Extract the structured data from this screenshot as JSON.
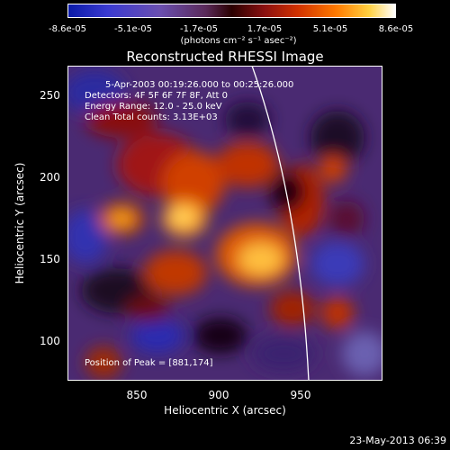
{
  "colorbar": {
    "ticks": [
      "-8.6e-05",
      "-5.1e-05",
      "-1.7e-05",
      "1.7e-05",
      "5.1e-05",
      "8.6e-05"
    ],
    "unit_label": "(photons cm⁻² s⁻¹ asec⁻²)"
  },
  "plot": {
    "title": "Reconstructed RHESSI Image",
    "annotations": {
      "time": "5-Apr-2003 00:19:26.000 to 00:25:26.000",
      "detectors": "Detectors: 4F 5F 6F 7F 8F, Att 0",
      "energy": "Energy Range: 12.0 - 25.0 keV",
      "clean": "Clean     Total counts: 3.13E+03",
      "peak": "Position of Peak = [881,174]"
    },
    "xlabel": "Heliocentric X (arcsec)",
    "ylabel": "Heliocentric Y (arcsec)",
    "xticks": [
      "850",
      "900",
      "950"
    ],
    "yticks": [
      "100",
      "150",
      "200",
      "250"
    ]
  },
  "footer": {
    "timestamp": "23-May-2013 06:39"
  }
}
